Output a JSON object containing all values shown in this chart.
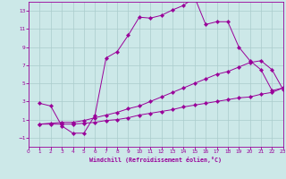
{
  "background_color": "#cce8e8",
  "grid_color": "#aacccc",
  "line_color": "#990099",
  "xlim": [
    0,
    23
  ],
  "ylim": [
    -2,
    14
  ],
  "xticks": [
    0,
    1,
    2,
    3,
    4,
    5,
    6,
    7,
    8,
    9,
    10,
    11,
    12,
    13,
    14,
    15,
    16,
    17,
    18,
    19,
    20,
    21,
    22,
    23
  ],
  "yticks": [
    -1,
    1,
    3,
    5,
    7,
    9,
    11,
    13
  ],
  "xlabel": "Windchill (Refroidissement éolien,°C)",
  "line1_x": [
    1,
    2,
    3,
    4,
    5,
    6,
    7,
    8,
    9,
    10,
    11,
    12,
    13,
    14,
    15,
    16,
    17,
    18,
    19,
    20,
    21,
    22,
    23
  ],
  "line1_y": [
    2.8,
    2.5,
    0.3,
    -0.5,
    -0.5,
    1.5,
    7.8,
    8.5,
    10.3,
    12.3,
    12.2,
    12.5,
    13.1,
    13.6,
    14.5,
    11.5,
    11.8,
    11.8,
    9.0,
    7.5,
    6.5,
    4.2,
    4.5
  ],
  "line2_x": [
    1,
    2,
    3,
    4,
    5,
    6,
    7,
    8,
    9,
    10,
    11,
    12,
    13,
    14,
    15,
    16,
    17,
    18,
    19,
    20,
    21,
    22,
    23
  ],
  "line2_y": [
    0.5,
    0.5,
    0.5,
    0.5,
    0.6,
    0.7,
    0.9,
    1.0,
    1.2,
    1.5,
    1.7,
    1.9,
    2.1,
    2.4,
    2.6,
    2.8,
    3.0,
    3.2,
    3.4,
    3.5,
    3.8,
    4.0,
    4.5
  ],
  "line3_x": [
    1,
    2,
    3,
    4,
    5,
    6,
    7,
    8,
    9,
    10,
    11,
    12,
    13,
    14,
    15,
    16,
    17,
    18,
    19,
    20,
    21,
    22,
    23
  ],
  "line3_y": [
    0.5,
    0.6,
    0.7,
    0.7,
    0.9,
    1.2,
    1.5,
    1.8,
    2.2,
    2.5,
    3.0,
    3.5,
    4.0,
    4.5,
    5.0,
    5.5,
    6.0,
    6.3,
    6.8,
    7.3,
    7.5,
    6.5,
    4.3
  ]
}
